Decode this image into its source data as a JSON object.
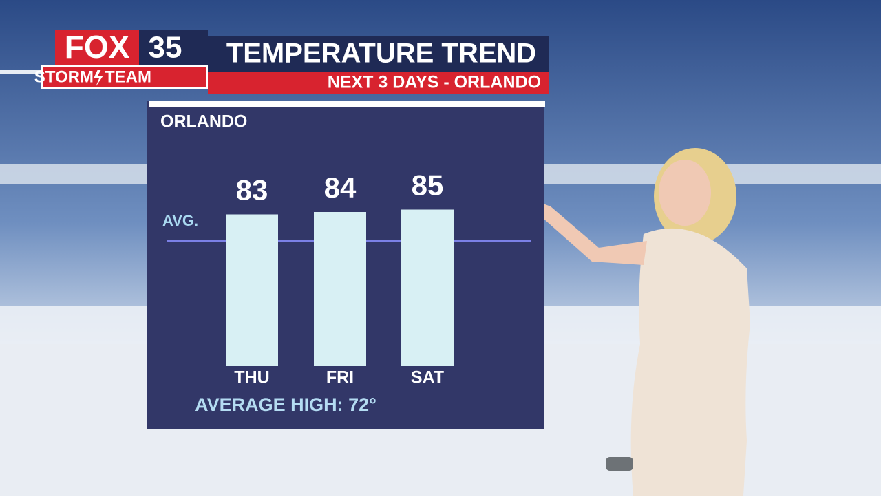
{
  "header": {
    "logo_brand": "FOX",
    "logo_number": "35",
    "team_left": "STORM",
    "team_right": "TEAM",
    "title": "TEMPERATURE TREND",
    "subtitle": "NEXT 3 DAYS - ORLANDO"
  },
  "chart_data": {
    "type": "bar",
    "title": "ORLANDO",
    "categories": [
      "THU",
      "FRI",
      "SAT"
    ],
    "values": [
      83,
      84,
      85
    ],
    "color": "#d8f0f4",
    "ylim": [
      20,
      90
    ],
    "reference_line": {
      "value": 72,
      "label": "AVG.",
      "color": "#7b80e6"
    },
    "footnote": "AVERAGE HIGH: 72°"
  }
}
